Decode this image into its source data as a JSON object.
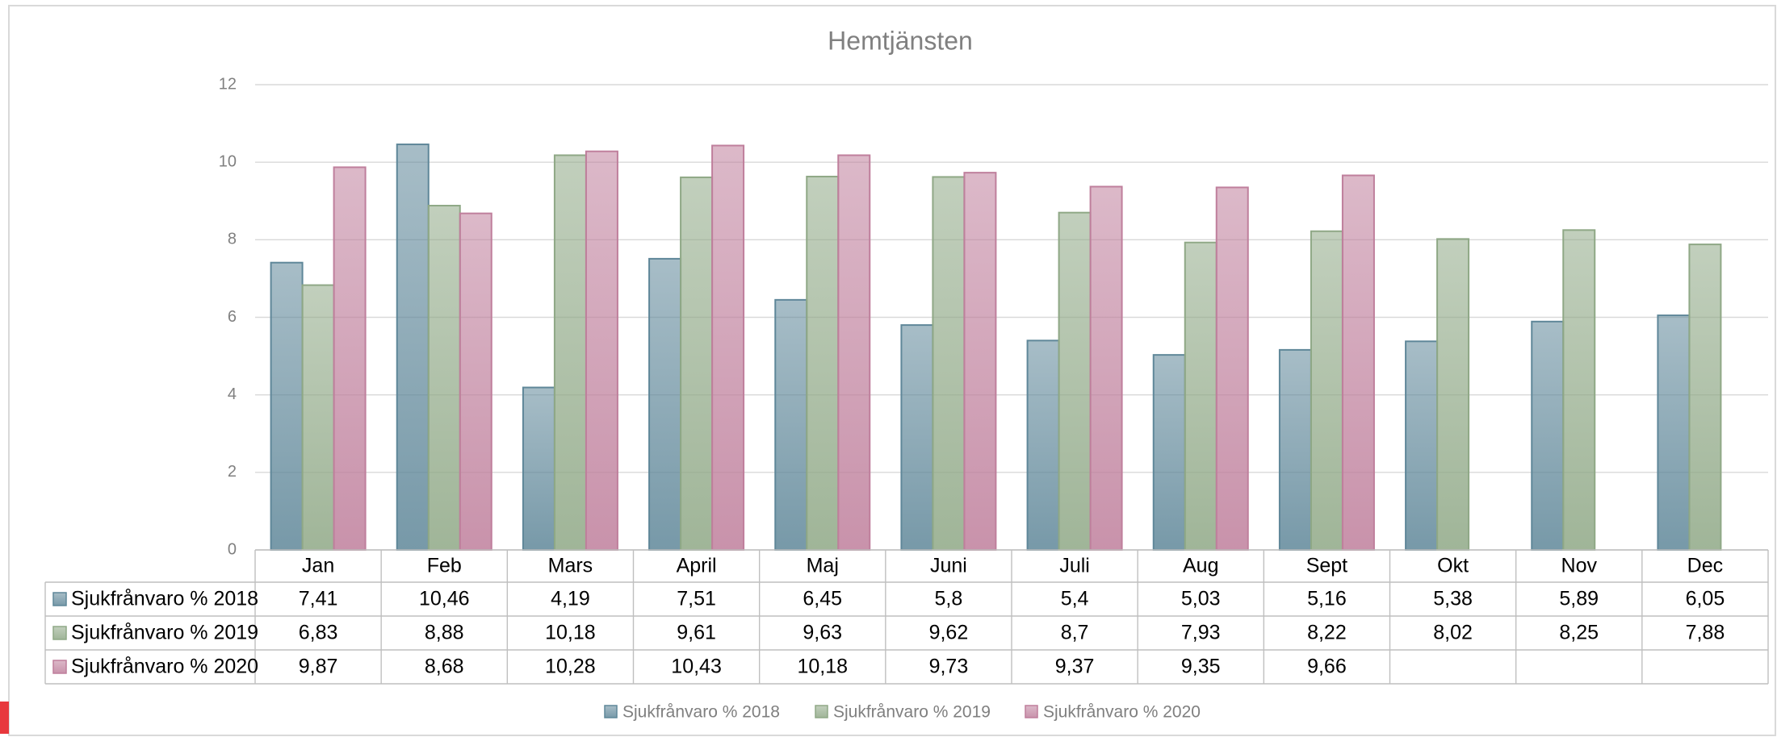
{
  "chart_data": {
    "type": "bar",
    "title": "Hemtjänsten",
    "categories": [
      "Jan",
      "Feb",
      "Mars",
      "April",
      "Maj",
      "Juni",
      "Juli",
      "Aug",
      "Sept",
      "Okt",
      "Nov",
      "Dec"
    ],
    "series": [
      {
        "name": "Sjukfrånvaro % 2018",
        "color": "#5f8799",
        "values": [
          7.41,
          10.46,
          4.19,
          7.51,
          6.45,
          5.8,
          5.4,
          5.03,
          5.16,
          5.38,
          5.89,
          6.05
        ],
        "value_labels": [
          "7,41",
          "10,46",
          "4,19",
          "7,51",
          "6,45",
          "5,8",
          "5,4",
          "5,03",
          "5,16",
          "5,38",
          "5,89",
          "6,05"
        ]
      },
      {
        "name": "Sjukfrånvaro % 2019",
        "color": "#8fa886",
        "values": [
          6.83,
          8.88,
          10.18,
          9.61,
          9.63,
          9.62,
          8.7,
          7.93,
          8.22,
          8.02,
          8.25,
          7.88
        ],
        "value_labels": [
          "6,83",
          "8,88",
          "10,18",
          "9,61",
          "9,63",
          "9,62",
          "8,7",
          "7,93",
          "8,22",
          "8,02",
          "8,25",
          "7,88"
        ]
      },
      {
        "name": "Sjukfrånvaro % 2020",
        "color": "#bf7f9c",
        "values": [
          9.87,
          8.68,
          10.28,
          10.43,
          10.18,
          9.73,
          9.37,
          9.35,
          9.66,
          null,
          null,
          null
        ],
        "value_labels": [
          "9,87",
          "8,68",
          "10,28",
          "10,43",
          "10,18",
          "9,73",
          "9,37",
          "9,35",
          "9,66",
          null,
          null,
          null
        ]
      }
    ],
    "ylim": [
      0,
      12
    ],
    "yticks": [
      0,
      2,
      4,
      6,
      8,
      10,
      12
    ],
    "grid": true,
    "legend": "bottom"
  }
}
